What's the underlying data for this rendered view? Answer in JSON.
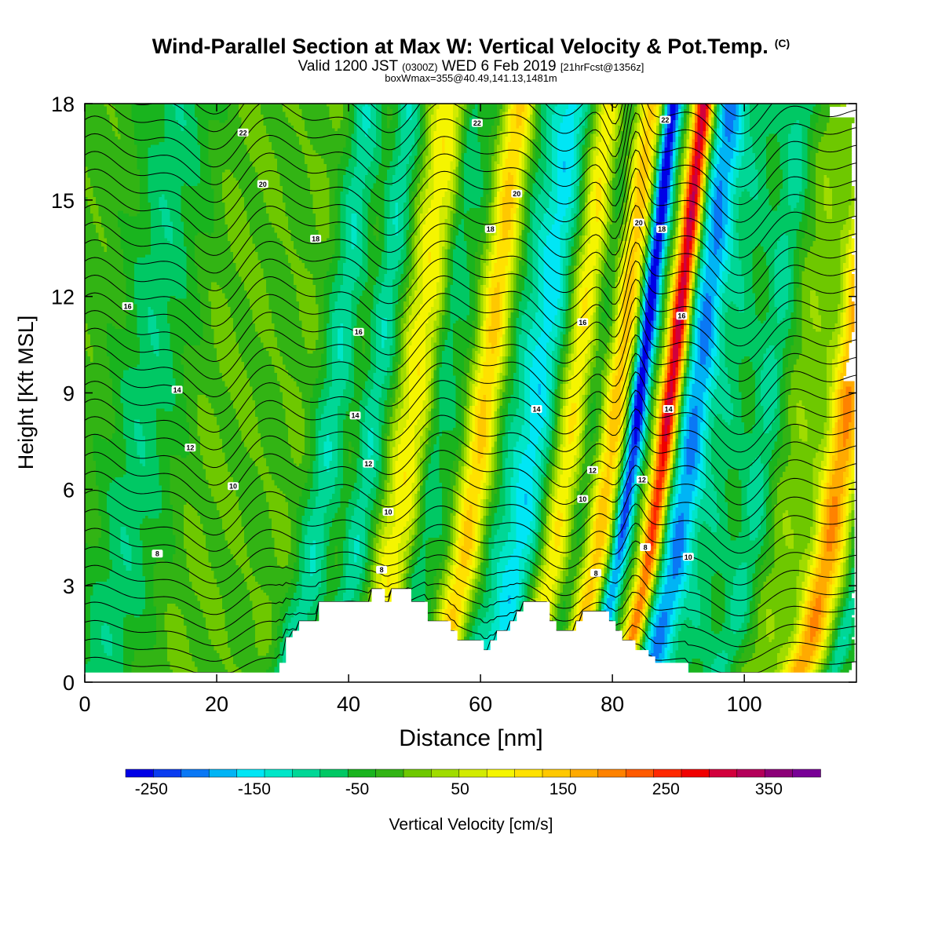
{
  "chart_data": {
    "type": "heatmap",
    "title": "Wind-Parallel Section at Max W: Vertical Velocity & Pot.Temp.",
    "title_mark": "(C)",
    "subtitle": {
      "valid": "Valid 1200 JST",
      "utc": "(0300Z)",
      "date": "WED 6 Feb 2019",
      "forecast": "[21hrFcst@1356z]"
    },
    "subtitle2": "boxWmax=355@40.49,141.13,1481m",
    "xlabel": "Distance [nm]",
    "ylabel": "Height [Kft MSL]",
    "xlim": [
      0,
      117
    ],
    "ylim": [
      0,
      18
    ],
    "x_ticks": [
      "0",
      "20",
      "40",
      "60",
      "80",
      "100"
    ],
    "y_ticks": [
      "0",
      "3",
      "6",
      "9",
      "12",
      "15",
      "18"
    ],
    "colorbar": {
      "label": "Vertical Velocity [cm/s]",
      "range": [
        -275,
        400
      ],
      "tick_labels": [
        "-250",
        "-150",
        "-50",
        "50",
        "150",
        "250",
        "350"
      ],
      "colors": [
        "#0000e6",
        "#0a3cf0",
        "#0a78f5",
        "#00b4f5",
        "#00e6f5",
        "#00e6c8",
        "#00d796",
        "#00c864",
        "#19b41e",
        "#32b414",
        "#6ec800",
        "#a0dc00",
        "#d2eb00",
        "#f5f500",
        "#ffe100",
        "#ffc800",
        "#ffaa00",
        "#ff8200",
        "#ff5a00",
        "#ff2800",
        "#f00000",
        "#d2003c",
        "#b4005a",
        "#8c0078",
        "#780096"
      ]
    },
    "velocity_bands": [
      {
        "x": 3,
        "w": 4,
        "peak": -30
      },
      {
        "x": 6,
        "w": 5,
        "peak": -40
      },
      {
        "x": 15,
        "w": 3,
        "peak": 15
      },
      {
        "x": 20,
        "w": 2,
        "peak": 10
      },
      {
        "x": 28,
        "w": 2,
        "peak": 15
      },
      {
        "x": 33,
        "w": 2.5,
        "peak": -90
      },
      {
        "x": 37,
        "w": 1.5,
        "peak": 25
      },
      {
        "x": 39.5,
        "w": 3,
        "peak": -100
      },
      {
        "x": 45,
        "w": 3.5,
        "peak": 110
      },
      {
        "x": 49,
        "w": 1.5,
        "peak": -70
      },
      {
        "x": 51.5,
        "w": 2,
        "peak": -40
      },
      {
        "x": 56,
        "w": 2.3,
        "peak": 150
      },
      {
        "x": 60,
        "w": 2,
        "peak": -40
      },
      {
        "x": 64,
        "w": 3,
        "peak": -140
      },
      {
        "x": 69.5,
        "w": 2.2,
        "peak": 120
      },
      {
        "x": 72.5,
        "w": 1.6,
        "peak": -40
      },
      {
        "x": 76,
        "w": 2,
        "peak": 160
      },
      {
        "x": 79.3,
        "w": 1.4,
        "peak": -270
      },
      {
        "x": 84,
        "w": 1.5,
        "peak": 340
      },
      {
        "x": 88,
        "w": 2.5,
        "peak": -180
      },
      {
        "x": 93,
        "w": 3,
        "peak": -60
      },
      {
        "x": 99,
        "w": 2.5,
        "peak": -80
      },
      {
        "x": 104,
        "w": 3,
        "peak": 30
      },
      {
        "x": 111,
        "w": 2.5,
        "peak": 200
      },
      {
        "x": 116,
        "w": 1.5,
        "peak": -90
      }
    ],
    "terrain": [
      [
        0,
        0.3
      ],
      [
        29.5,
        0.3
      ],
      [
        29.5,
        0.6
      ],
      [
        30.5,
        0.6
      ],
      [
        30.5,
        1.4
      ],
      [
        31.5,
        1.4
      ],
      [
        31.5,
        1.6
      ],
      [
        32.5,
        1.6
      ],
      [
        32.5,
        1.9
      ],
      [
        35.5,
        1.9
      ],
      [
        35.5,
        2.5
      ],
      [
        43.5,
        2.5
      ],
      [
        43.5,
        2.9
      ],
      [
        45.5,
        2.9
      ],
      [
        45.5,
        2.5
      ],
      [
        46.5,
        2.5
      ],
      [
        46.5,
        2.9
      ],
      [
        49.5,
        2.9
      ],
      [
        49.5,
        2.5
      ],
      [
        52,
        2.5
      ],
      [
        52,
        1.9
      ],
      [
        55.5,
        1.9
      ],
      [
        55.5,
        1.6
      ],
      [
        56.5,
        1.6
      ],
      [
        56.5,
        1.3
      ],
      [
        60.5,
        1.3
      ],
      [
        60.5,
        1
      ],
      [
        61.5,
        1
      ],
      [
        61.5,
        1.3
      ],
      [
        62.5,
        1.3
      ],
      [
        62.5,
        1.6
      ],
      [
        64.5,
        1.6
      ],
      [
        64.5,
        1.9
      ],
      [
        65.5,
        1.9
      ],
      [
        65.5,
        2.2
      ],
      [
        66.5,
        2.2
      ],
      [
        66.5,
        2.5
      ],
      [
        70.5,
        2.5
      ],
      [
        70.5,
        1.9
      ],
      [
        71.5,
        1.9
      ],
      [
        71.5,
        1.6
      ],
      [
        74.5,
        1.6
      ],
      [
        74.5,
        1.9
      ],
      [
        75.5,
        1.9
      ],
      [
        75.5,
        2.2
      ],
      [
        79.5,
        2.2
      ],
      [
        79.5,
        1.9
      ],
      [
        80.5,
        1.9
      ],
      [
        80.5,
        1.6
      ],
      [
        81.5,
        1.6
      ],
      [
        81.5,
        1.3
      ],
      [
        83.5,
        1.3
      ],
      [
        83.5,
        1
      ],
      [
        85.5,
        1
      ],
      [
        85.5,
        0.8
      ],
      [
        86.5,
        0.8
      ],
      [
        86.5,
        0.6
      ],
      [
        91.5,
        0.6
      ],
      [
        91.5,
        0.3
      ],
      [
        117,
        0.3
      ]
    ],
    "theta_labels": [
      {
        "x": 24,
        "y": 17.1,
        "text": "22"
      },
      {
        "x": 59.5,
        "y": 17.4,
        "text": "22"
      },
      {
        "x": 88,
        "y": 17.5,
        "text": "22"
      },
      {
        "x": 27,
        "y": 15.5,
        "text": "20"
      },
      {
        "x": 65.5,
        "y": 15.2,
        "text": "20"
      },
      {
        "x": 84,
        "y": 14.3,
        "text": "20"
      },
      {
        "x": 35,
        "y": 13.8,
        "text": "18"
      },
      {
        "x": 61.5,
        "y": 14.1,
        "text": "18"
      },
      {
        "x": 87.5,
        "y": 14.1,
        "text": "18"
      },
      {
        "x": 6.5,
        "y": 11.7,
        "text": "16"
      },
      {
        "x": 41.5,
        "y": 10.9,
        "text": "16"
      },
      {
        "x": 75.5,
        "y": 11.2,
        "text": "16"
      },
      {
        "x": 90.5,
        "y": 11.4,
        "text": "16"
      },
      {
        "x": 14,
        "y": 9.1,
        "text": "14"
      },
      {
        "x": 41,
        "y": 8.3,
        "text": "14"
      },
      {
        "x": 68.5,
        "y": 8.5,
        "text": "14"
      },
      {
        "x": 88.5,
        "y": 8.5,
        "text": "14"
      },
      {
        "x": 16,
        "y": 7.3,
        "text": "12"
      },
      {
        "x": 43,
        "y": 6.8,
        "text": "12"
      },
      {
        "x": 77,
        "y": 6.6,
        "text": "12"
      },
      {
        "x": 84.5,
        "y": 6.3,
        "text": "12"
      },
      {
        "x": 22.5,
        "y": 6.1,
        "text": "10"
      },
      {
        "x": 46,
        "y": 5.3,
        "text": "10"
      },
      {
        "x": 75.5,
        "y": 5.7,
        "text": "10"
      },
      {
        "x": 91.5,
        "y": 3.9,
        "text": "10"
      },
      {
        "x": 11,
        "y": 4.0,
        "text": "8"
      },
      {
        "x": 45,
        "y": 3.5,
        "text": "8"
      },
      {
        "x": 77.5,
        "y": 3.4,
        "text": "8"
      },
      {
        "x": 85,
        "y": 4.2,
        "text": "8"
      }
    ]
  }
}
